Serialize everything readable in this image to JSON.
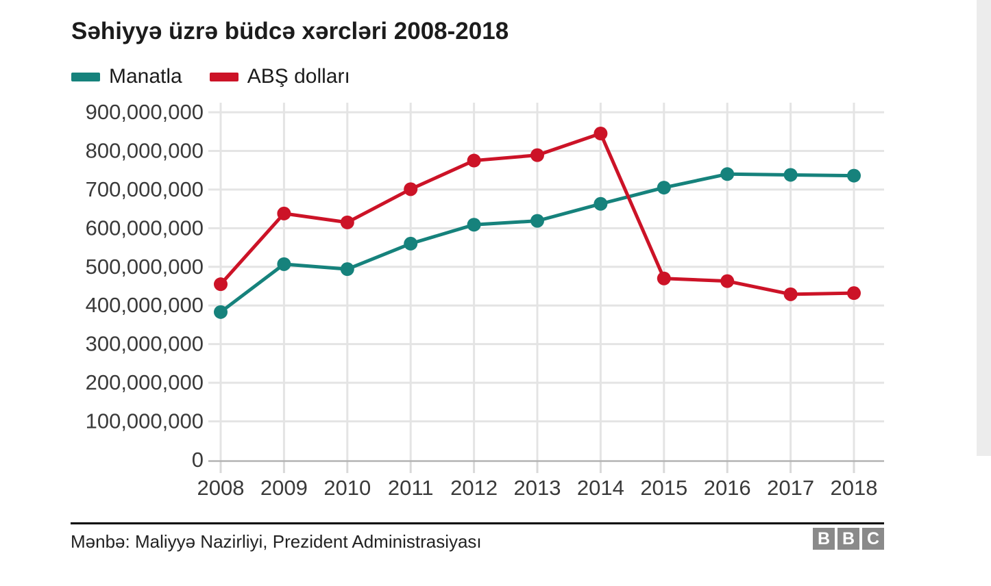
{
  "title": "Səhiyyə üzrə büdcə xərcləri 2008-2018",
  "legend": [
    {
      "label": "Manatla",
      "color": "#16827c"
    },
    {
      "label": "ABŞ dolları",
      "color": "#cc1327"
    }
  ],
  "chart_data": {
    "type": "line",
    "x": [
      "2008",
      "2009",
      "2010",
      "2011",
      "2012",
      "2013",
      "2014",
      "2015",
      "2016",
      "2017",
      "2018"
    ],
    "series": [
      {
        "name": "Manatla",
        "color": "#16827c",
        "values": [
          383000000,
          507000000,
          494000000,
          560000000,
          609000000,
          619000000,
          663000000,
          705000000,
          740000000,
          738000000,
          736000000
        ]
      },
      {
        "name": "ABŞ dolları",
        "color": "#cc1327",
        "values": [
          455000000,
          638000000,
          615000000,
          701000000,
          775000000,
          789000000,
          845000000,
          470000000,
          463000000,
          429000000,
          432000000
        ]
      }
    ],
    "title": "Səhiyyə üzrə büdcə xərcləri 2008-2018",
    "xlabel": "",
    "ylabel": "",
    "ylim": [
      0,
      900000000
    ],
    "ytick_step": 100000000,
    "grid": true,
    "legend_position": "top-left",
    "marker": "circle"
  },
  "style_colors": {
    "grid": "#e4e4e4",
    "axis": "#b3b3b3",
    "tick": "#d9d9d9",
    "tick_text": "#3a3a3a"
  },
  "footer": {
    "source": "Mənbə: Maliyyə Nazirliyi, Prezident Administrasiyası",
    "logo": [
      "B",
      "B",
      "C"
    ]
  }
}
